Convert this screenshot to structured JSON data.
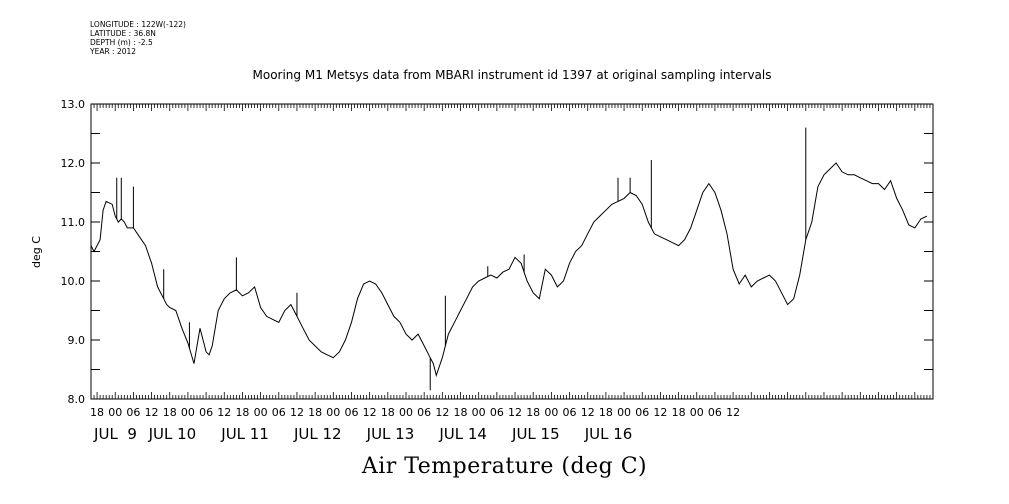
{
  "meta": {
    "longitude": "LONGITUDE : 122W(-122)",
    "latitude": "LATITUDE : 36.8N",
    "depth": "DEPTH (m) : -2.5",
    "year": "YEAR : 2012"
  },
  "chart_data": {
    "type": "line",
    "title": "Mooring M1 Metsys data from MBARI instrument id 1397 at original sampling intervals",
    "ylabel": "deg C",
    "xlabel": "Air Temperature (deg C)",
    "ylim": [
      8.0,
      13.0
    ],
    "yticks": [
      "8.0",
      "9.0",
      "10.0",
      "11.0",
      "12.0",
      "13.0"
    ],
    "xlim_hours": [
      -8,
      270
    ],
    "hour_ticks": [
      "18",
      "00",
      "06",
      "12",
      "18",
      "00",
      "06",
      "12",
      "18",
      "00",
      "06",
      "12",
      "18",
      "00",
      "06",
      "12",
      "18",
      "00",
      "06",
      "12",
      "18",
      "00",
      "06",
      "12",
      "18",
      "00",
      "06",
      "12",
      "18",
      "00",
      "06",
      "12",
      "18",
      "00",
      "06",
      "12"
    ],
    "day_labels": [
      "JUL  9",
      "JUL 10",
      "JUL 11",
      "JUL 12",
      "JUL 13",
      "JUL 14",
      "JUL 15",
      "JUL 16"
    ],
    "grid": false,
    "series": [
      {
        "color": "#000000",
        "x": [
          -8,
          -7,
          -5,
          -4,
          -3,
          -1,
          0,
          1,
          2,
          3,
          4,
          6,
          8,
          10,
          12,
          14,
          16,
          17,
          18,
          20,
          22,
          24,
          26,
          28,
          30,
          31,
          32,
          34,
          36,
          38,
          40,
          42,
          44,
          46,
          48,
          50,
          52,
          54,
          56,
          58,
          60,
          62,
          64,
          66,
          68,
          70,
          72,
          74,
          76,
          78,
          80,
          82,
          84,
          86,
          88,
          90,
          92,
          94,
          96,
          98,
          100,
          102,
          104,
          105,
          106,
          108,
          110,
          112,
          114,
          116,
          118,
          120,
          122,
          124,
          126,
          128,
          130,
          132,
          134,
          136,
          138,
          140,
          142,
          144,
          146,
          148,
          150,
          152,
          154,
          156,
          158,
          160,
          162,
          164,
          166,
          168,
          170,
          172,
          174,
          176,
          178,
          180,
          182,
          184,
          186,
          188,
          190,
          192,
          194,
          196,
          198,
          200,
          202,
          204,
          206,
          208,
          210,
          212,
          214,
          216,
          218,
          220,
          222,
          224,
          226,
          228,
          230,
          232,
          234,
          236,
          238,
          240,
          242,
          244,
          246,
          248,
          250,
          252,
          254,
          256,
          258,
          260,
          262,
          264,
          266,
          268
        ],
        "y": [
          10.6,
          10.5,
          10.7,
          11.2,
          11.35,
          11.3,
          11.1,
          11.0,
          11.05,
          11.0,
          10.9,
          10.9,
          10.75,
          10.6,
          10.3,
          9.9,
          9.7,
          9.6,
          9.55,
          9.5,
          9.2,
          8.95,
          8.6,
          9.2,
          8.8,
          8.75,
          8.9,
          9.5,
          9.7,
          9.8,
          9.85,
          9.75,
          9.8,
          9.9,
          9.55,
          9.4,
          9.35,
          9.3,
          9.5,
          9.6,
          9.4,
          9.2,
          9.0,
          8.9,
          8.8,
          8.75,
          8.7,
          8.8,
          9.0,
          9.3,
          9.7,
          9.95,
          10.0,
          9.95,
          9.8,
          9.6,
          9.4,
          9.3,
          9.1,
          9.0,
          9.1,
          8.9,
          8.7,
          8.6,
          8.4,
          8.7,
          9.1,
          9.3,
          9.5,
          9.7,
          9.9,
          10.0,
          10.05,
          10.1,
          10.05,
          10.15,
          10.2,
          10.4,
          10.3,
          10.0,
          9.8,
          9.7,
          10.2,
          10.1,
          9.9,
          10.0,
          10.3,
          10.5,
          10.6,
          10.8,
          11.0,
          11.1,
          11.2,
          11.3,
          11.35,
          11.4,
          11.5,
          11.45,
          11.3,
          11.0,
          10.8,
          10.75,
          10.7,
          10.65,
          10.6,
          10.7,
          10.9,
          11.2,
          11.5,
          11.65,
          11.5,
          11.2,
          10.8,
          10.2,
          9.95,
          10.1,
          9.9,
          10.0,
          10.05,
          10.1,
          10.0,
          9.8,
          9.6,
          9.7,
          10.1,
          10.7,
          11.0,
          11.6,
          11.8,
          11.9,
          12.0,
          11.85,
          11.8,
          11.8,
          11.75,
          11.7,
          11.65,
          11.65,
          11.55,
          11.7,
          11.4,
          11.2,
          10.95,
          10.9,
          11.05,
          11.1
        ]
      }
    ],
    "spikes": [
      {
        "x": 0.5,
        "y": 11.75
      },
      {
        "x": 2,
        "y": 11.75
      },
      {
        "x": 6,
        "y": 11.6
      },
      {
        "x": 16,
        "y": 10.2
      },
      {
        "x": 24.5,
        "y": 9.3
      },
      {
        "x": 40,
        "y": 10.4
      },
      {
        "x": 60,
        "y": 9.8
      },
      {
        "x": 104,
        "y": 8.15
      },
      {
        "x": 109,
        "y": 9.75
      },
      {
        "x": 123,
        "y": 10.25
      },
      {
        "x": 135,
        "y": 10.45
      },
      {
        "x": 166,
        "y": 11.75
      },
      {
        "x": 170,
        "y": 11.75
      },
      {
        "x": 177,
        "y": 12.05
      },
      {
        "x": 228,
        "y": 12.6
      }
    ]
  }
}
